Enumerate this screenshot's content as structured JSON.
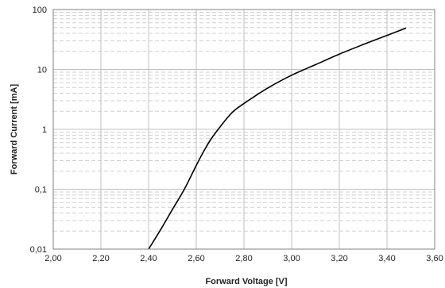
{
  "chart_data": {
    "type": "line",
    "title": "",
    "xlabel": "Forward Voltage [V]",
    "ylabel": "Forward Current [mA]",
    "xlim": [
      2.0,
      3.6
    ],
    "ylim": [
      0.01,
      100
    ],
    "y_scale": "log",
    "grid": true,
    "legend": "none",
    "x_ticks": [
      {
        "value": 2.0,
        "label": "2,00"
      },
      {
        "value": 2.2,
        "label": "2,20"
      },
      {
        "value": 2.4,
        "label": "2,40"
      },
      {
        "value": 2.6,
        "label": "2,60"
      },
      {
        "value": 2.8,
        "label": "2,80"
      },
      {
        "value": 3.0,
        "label": "3,00"
      },
      {
        "value": 3.2,
        "label": "3,20"
      },
      {
        "value": 3.4,
        "label": "3,40"
      },
      {
        "value": 3.6,
        "label": "3,60"
      }
    ],
    "y_ticks": [
      {
        "value": 0.01,
        "label": "0,01"
      },
      {
        "value": 0.1,
        "label": "0,1"
      },
      {
        "value": 1,
        "label": "1"
      },
      {
        "value": 10,
        "label": "10"
      },
      {
        "value": 100,
        "label": "100"
      }
    ],
    "series": [
      {
        "color": "#000000",
        "x": [
          2.4,
          2.45,
          2.5,
          2.55,
          2.6,
          2.63,
          2.66,
          2.7,
          2.75,
          2.8,
          2.9,
          3.0,
          3.1,
          3.2,
          3.3,
          3.4,
          3.48
        ],
        "y": [
          0.01,
          0.021,
          0.046,
          0.1,
          0.25,
          0.42,
          0.67,
          1.1,
          1.9,
          2.7,
          4.9,
          8.0,
          12.0,
          18.0,
          26.0,
          37.0,
          49.0
        ]
      }
    ],
    "colors": {
      "axis": "#808080",
      "major_grid": "#c0c0c0",
      "minor_grid": "#d0d0d0",
      "line": "#000000"
    }
  }
}
